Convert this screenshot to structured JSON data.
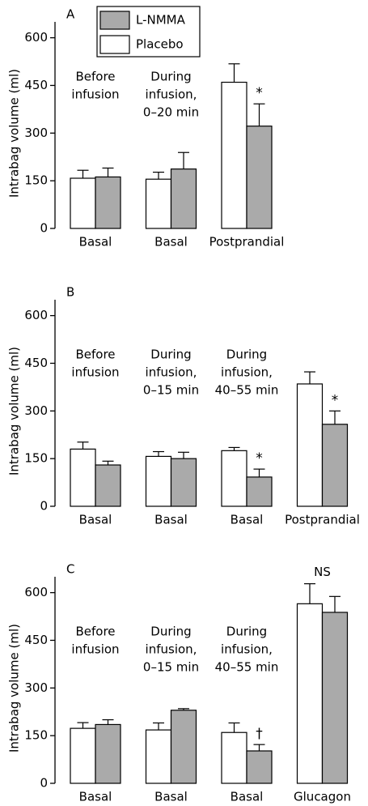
{
  "chart_data": [
    {
      "type": "bar",
      "panel_label": "A",
      "y_label": "Intrabag volume (ml)",
      "categories": [
        "Basal",
        "Basal",
        "Postprandial"
      ],
      "group_labels": [
        [
          "Before",
          "infusion"
        ],
        [
          "During",
          "infusion,",
          "0–20 min"
        ],
        null
      ],
      "group_annotations": [
        null,
        null,
        null
      ],
      "series": [
        {
          "name": "Placebo",
          "color": "#ffffff",
          "values": [
            158,
            155,
            460
          ],
          "errors": [
            25,
            22,
            58
          ],
          "annotations": [
            null,
            null,
            null
          ]
        },
        {
          "name": "L-NMMA",
          "color": "#aaaaaa",
          "values": [
            162,
            187,
            322
          ],
          "errors": [
            28,
            52,
            70
          ],
          "annotations": [
            null,
            null,
            "*"
          ]
        }
      ],
      "ylim": [
        0,
        650
      ],
      "yticks": [
        0,
        150,
        300,
        450,
        600
      ]
    },
    {
      "type": "bar",
      "panel_label": "B",
      "y_label": "Intrabag volume (ml)",
      "categories": [
        "Basal",
        "Basal",
        "Basal",
        "Postprandial"
      ],
      "group_labels": [
        [
          "Before",
          "infusion"
        ],
        [
          "During",
          "infusion,",
          "0–15 min"
        ],
        [
          "During",
          "infusion,",
          "40–55 min"
        ],
        null
      ],
      "group_annotations": [
        null,
        null,
        null,
        null
      ],
      "series": [
        {
          "color": "#ffffff",
          "values": [
            180,
            157,
            175,
            385
          ],
          "errors": [
            22,
            15,
            10,
            38
          ],
          "annotations": [
            null,
            null,
            null,
            null
          ]
        },
        {
          "color": "#aaaaaa",
          "values": [
            130,
            150,
            92,
            258
          ],
          "errors": [
            12,
            20,
            25,
            42
          ],
          "annotations": [
            null,
            null,
            "*",
            "*"
          ]
        }
      ],
      "ylim": [
        0,
        650
      ],
      "yticks": [
        0,
        150,
        300,
        450,
        600
      ]
    },
    {
      "type": "bar",
      "panel_label": "C",
      "y_label": "Intrabag volume (ml)",
      "categories": [
        "Basal",
        "Basal",
        "Basal",
        "Glucagon"
      ],
      "group_labels": [
        [
          "Before",
          "infusion"
        ],
        [
          "During",
          "infusion,",
          "0–15 min"
        ],
        [
          "During",
          "infusion,",
          "40–55 min"
        ],
        null
      ],
      "group_annotations": [
        null,
        null,
        null,
        "NS"
      ],
      "series": [
        {
          "color": "#ffffff",
          "values": [
            173,
            168,
            160,
            565
          ],
          "errors": [
            18,
            22,
            30,
            63
          ],
          "annotations": [
            null,
            null,
            null,
            null
          ]
        },
        {
          "color": "#aaaaaa",
          "values": [
            185,
            230,
            102,
            538
          ],
          "errors": [
            15,
            5,
            20,
            50
          ],
          "annotations": [
            null,
            null,
            "†",
            null
          ]
        }
      ],
      "ylim": [
        0,
        650
      ],
      "yticks": [
        0,
        150,
        300,
        450,
        600
      ]
    }
  ]
}
